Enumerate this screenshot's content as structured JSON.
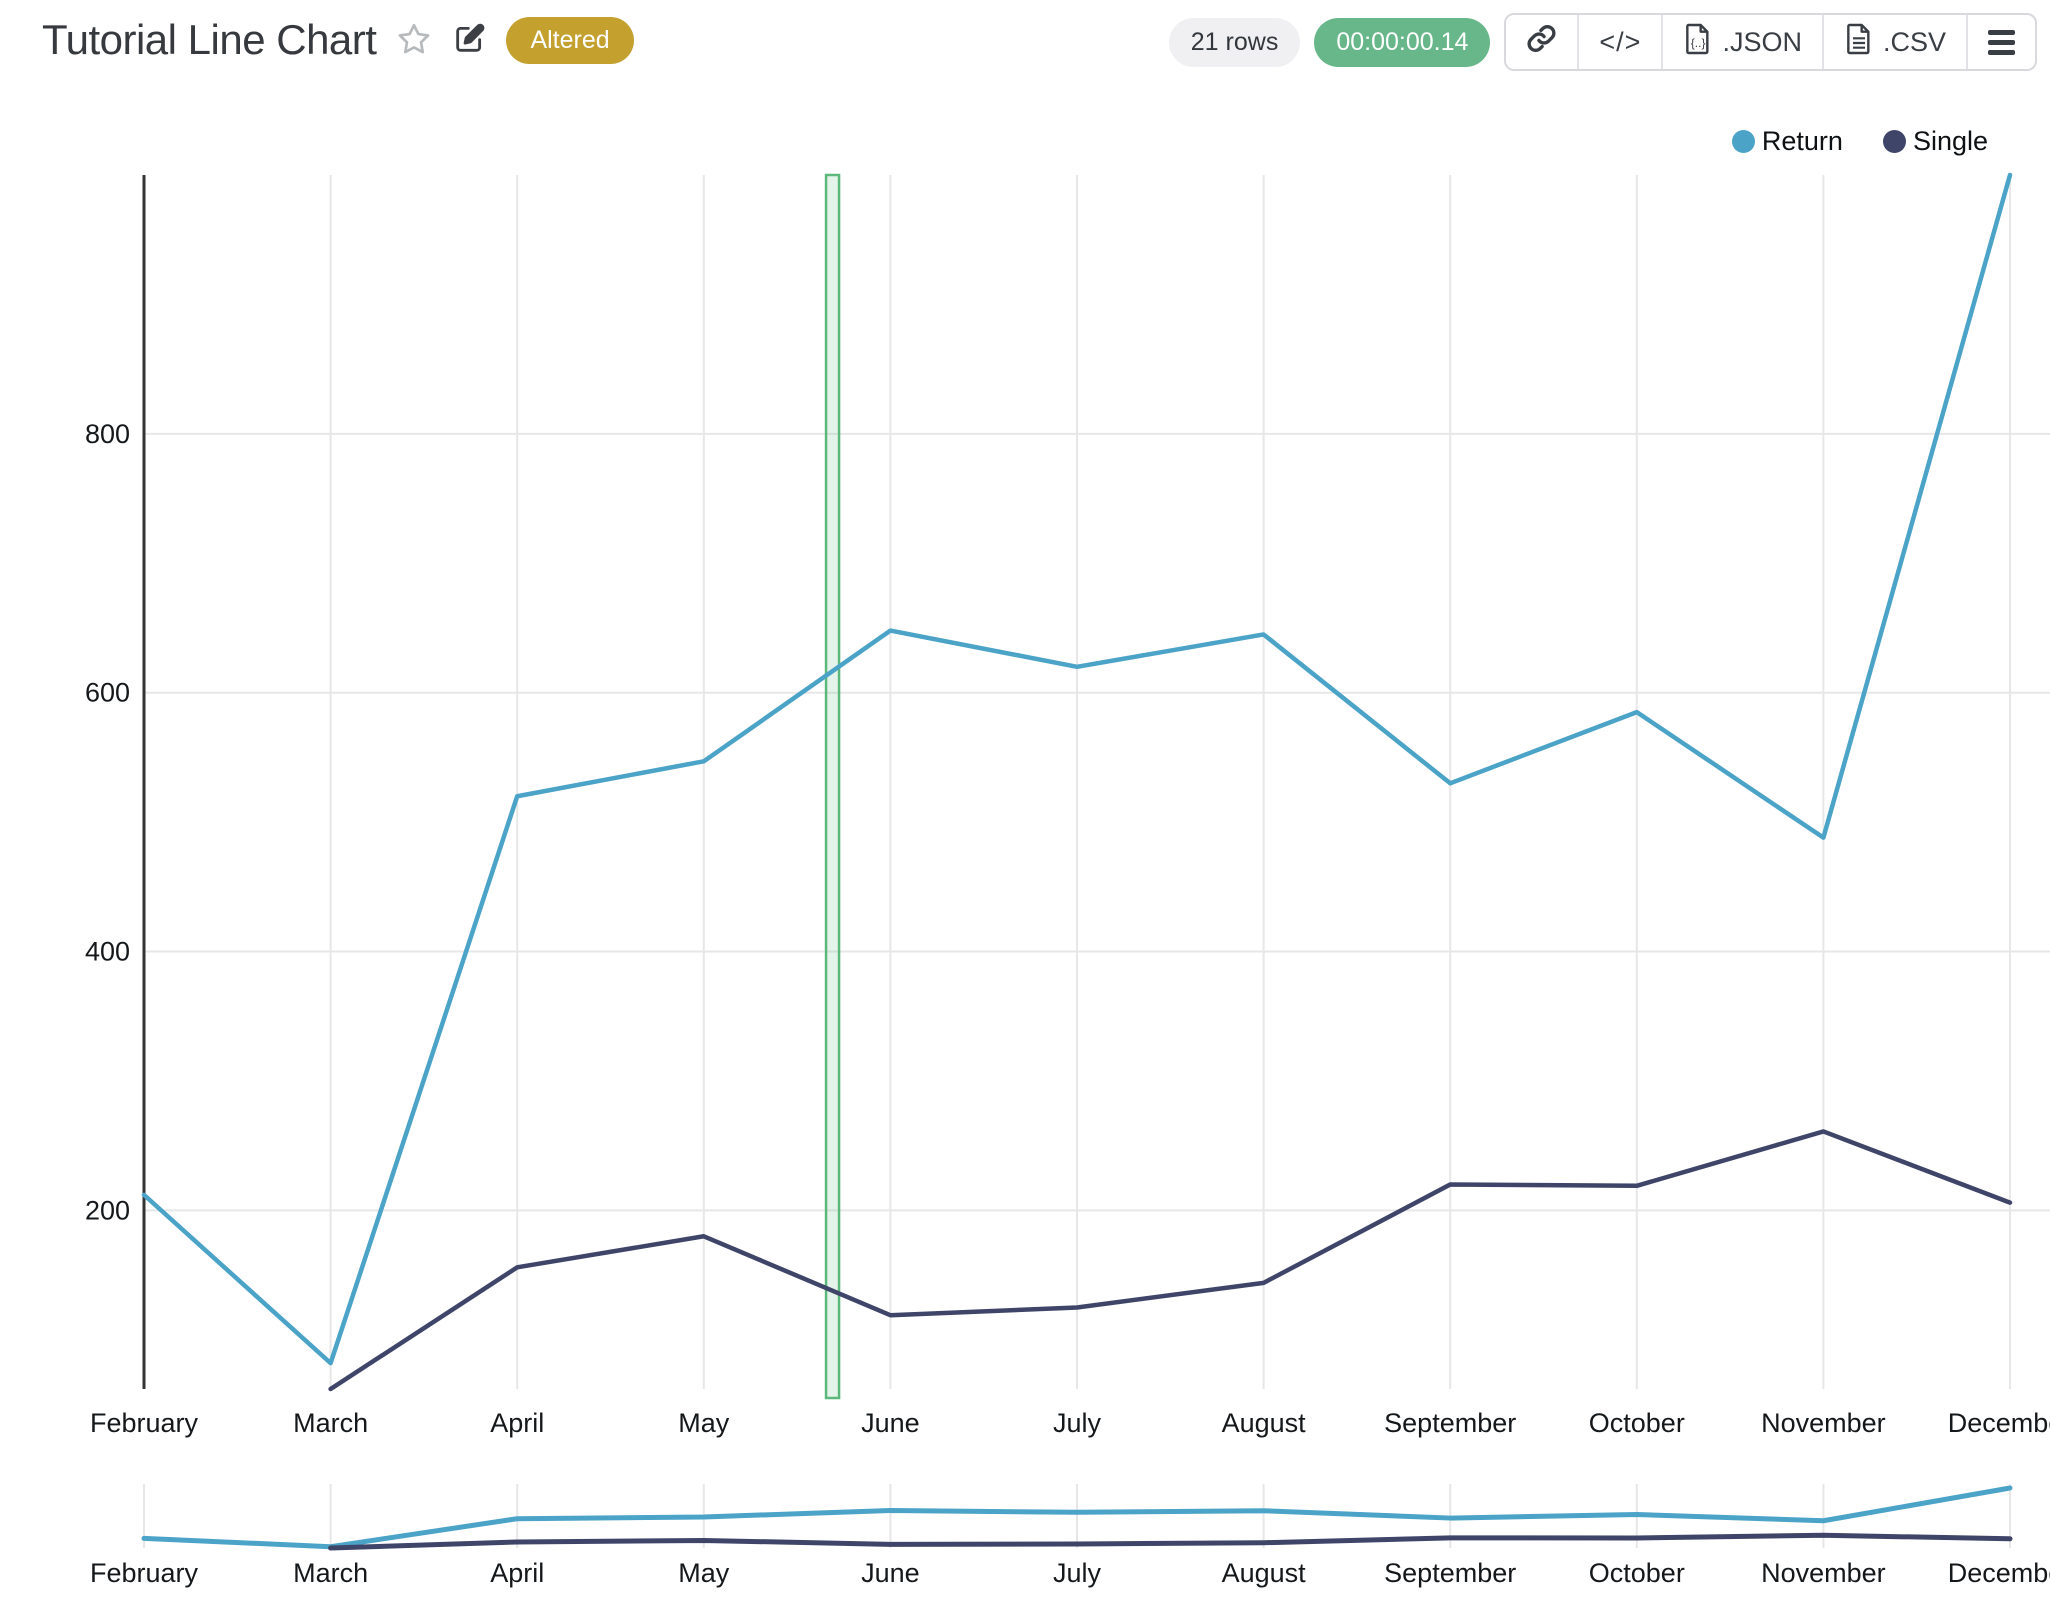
{
  "header": {
    "title": "Tutorial Line Chart",
    "badge": "Altered",
    "rows_label": "21 rows",
    "elapsed": "00:00:00.14",
    "export_json_label": ".JSON",
    "export_csv_label": ".CSV"
  },
  "colors": {
    "return_line": "#4BA3C7",
    "single_line": "#3F4569",
    "badge_bg": "#C4A12F",
    "timer_bg": "#67B78A",
    "rows_chip_bg": "#F0F0F2",
    "grid": "#E7E7E7",
    "axis": "#333333",
    "tick_text": "#15181B",
    "band_stroke": "#5CB87A",
    "band_fill": "rgba(92,184,122,0.16)"
  },
  "legend": [
    {
      "label": "Return",
      "color": "#4BA3C7"
    },
    {
      "label": "Single",
      "color": "#3F4569"
    }
  ],
  "chart_data": {
    "type": "line",
    "title": "Tutorial Line Chart",
    "x": [
      "February",
      "March",
      "April",
      "May",
      "June",
      "July",
      "August",
      "September",
      "October",
      "November",
      "December"
    ],
    "series": [
      {
        "name": "Return",
        "color": "#4BA3C7",
        "values": [
          212,
          82,
          520,
          547,
          648,
          620,
          645,
          530,
          585,
          488,
          1000
        ]
      },
      {
        "name": "Single",
        "color": "#3F4569",
        "values": [
          null,
          62,
          156,
          180,
          119,
          125,
          144,
          220,
          219,
          261,
          206
        ]
      }
    ],
    "xlabel": "",
    "ylabel": "",
    "yticks": [
      200,
      400,
      600,
      800
    ],
    "ylim": [
      62,
      1000
    ],
    "grid": true,
    "legend_position": "top-right",
    "annotation_band": {
      "type": "vertical-band",
      "center_month_index": 3.69,
      "width": 13
    },
    "minimap": {
      "enabled": true,
      "x_labels_repeated": true
    }
  }
}
